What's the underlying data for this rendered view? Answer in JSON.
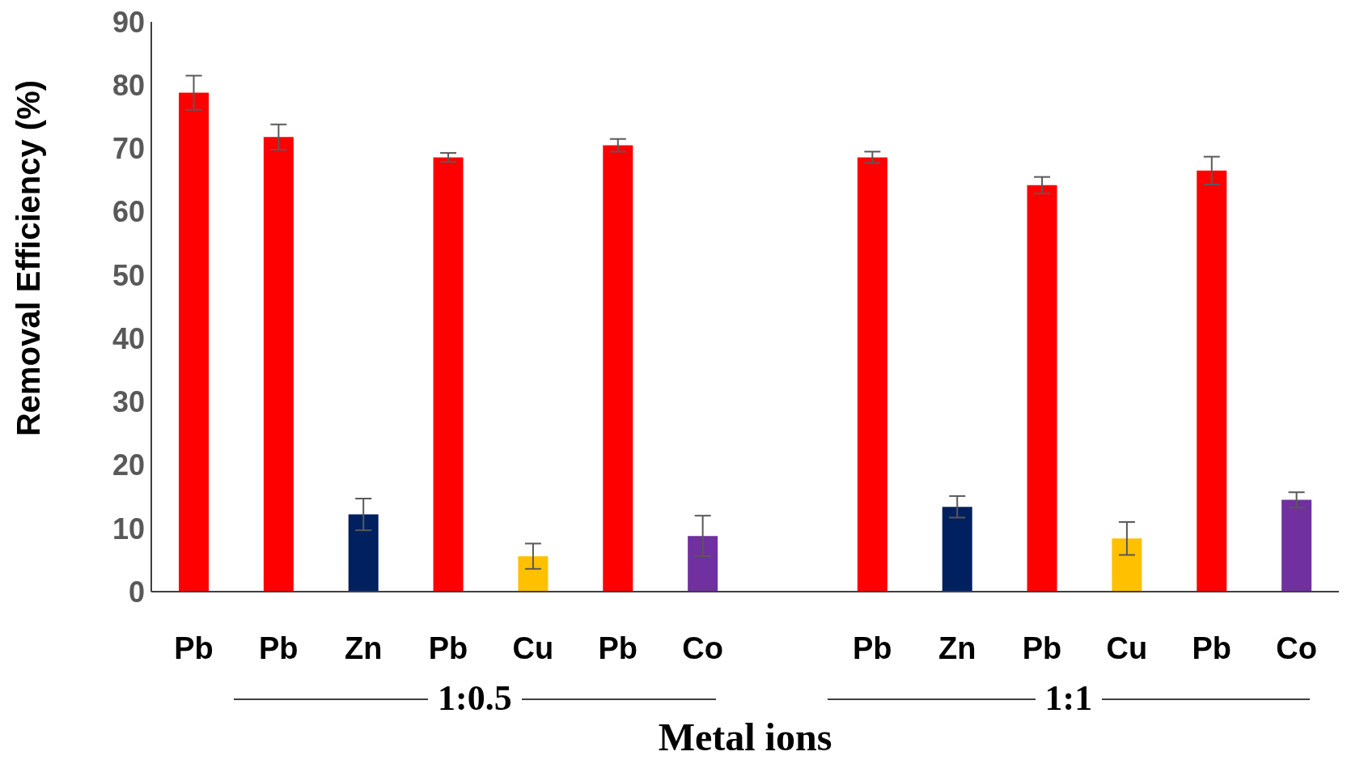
{
  "chart_data": {
    "type": "bar",
    "xlabel": "Metal ions",
    "ylabel": "Removal Efficiency (%)",
    "categories": [
      "Pb",
      "Pb",
      "Zn",
      "Pb",
      "Cu",
      "Pb",
      "Co",
      null,
      "Pb",
      "Zn",
      "Pb",
      "Cu",
      "Pb",
      "Co"
    ],
    "values": [
      78.8,
      71.8,
      12.2,
      68.6,
      5.6,
      70.5,
      8.8,
      null,
      68.6,
      13.4,
      64.2,
      8.4,
      66.5,
      14.5
    ],
    "errors": [
      2.7,
      2,
      2.5,
      0.7,
      2,
      1,
      3.2,
      null,
      0.9,
      1.7,
      1.3,
      2.6,
      2.2,
      1.2
    ],
    "colors": [
      "#ff0000",
      "#ff0000",
      "#002060",
      "#ff0000",
      "#ffc000",
      "#ff0000",
      "#7030a0",
      "#ffffff",
      "#ff0000",
      "#002060",
      "#ff0000",
      "#ffc000",
      "#ff0000",
      "#7030a0"
    ],
    "ylim": [
      0,
      90
    ],
    "yticks": [
      0,
      10,
      20,
      30,
      40,
      50,
      60,
      70,
      80,
      90
    ],
    "annotations": [
      "1:0.5",
      "1:1"
    ]
  }
}
